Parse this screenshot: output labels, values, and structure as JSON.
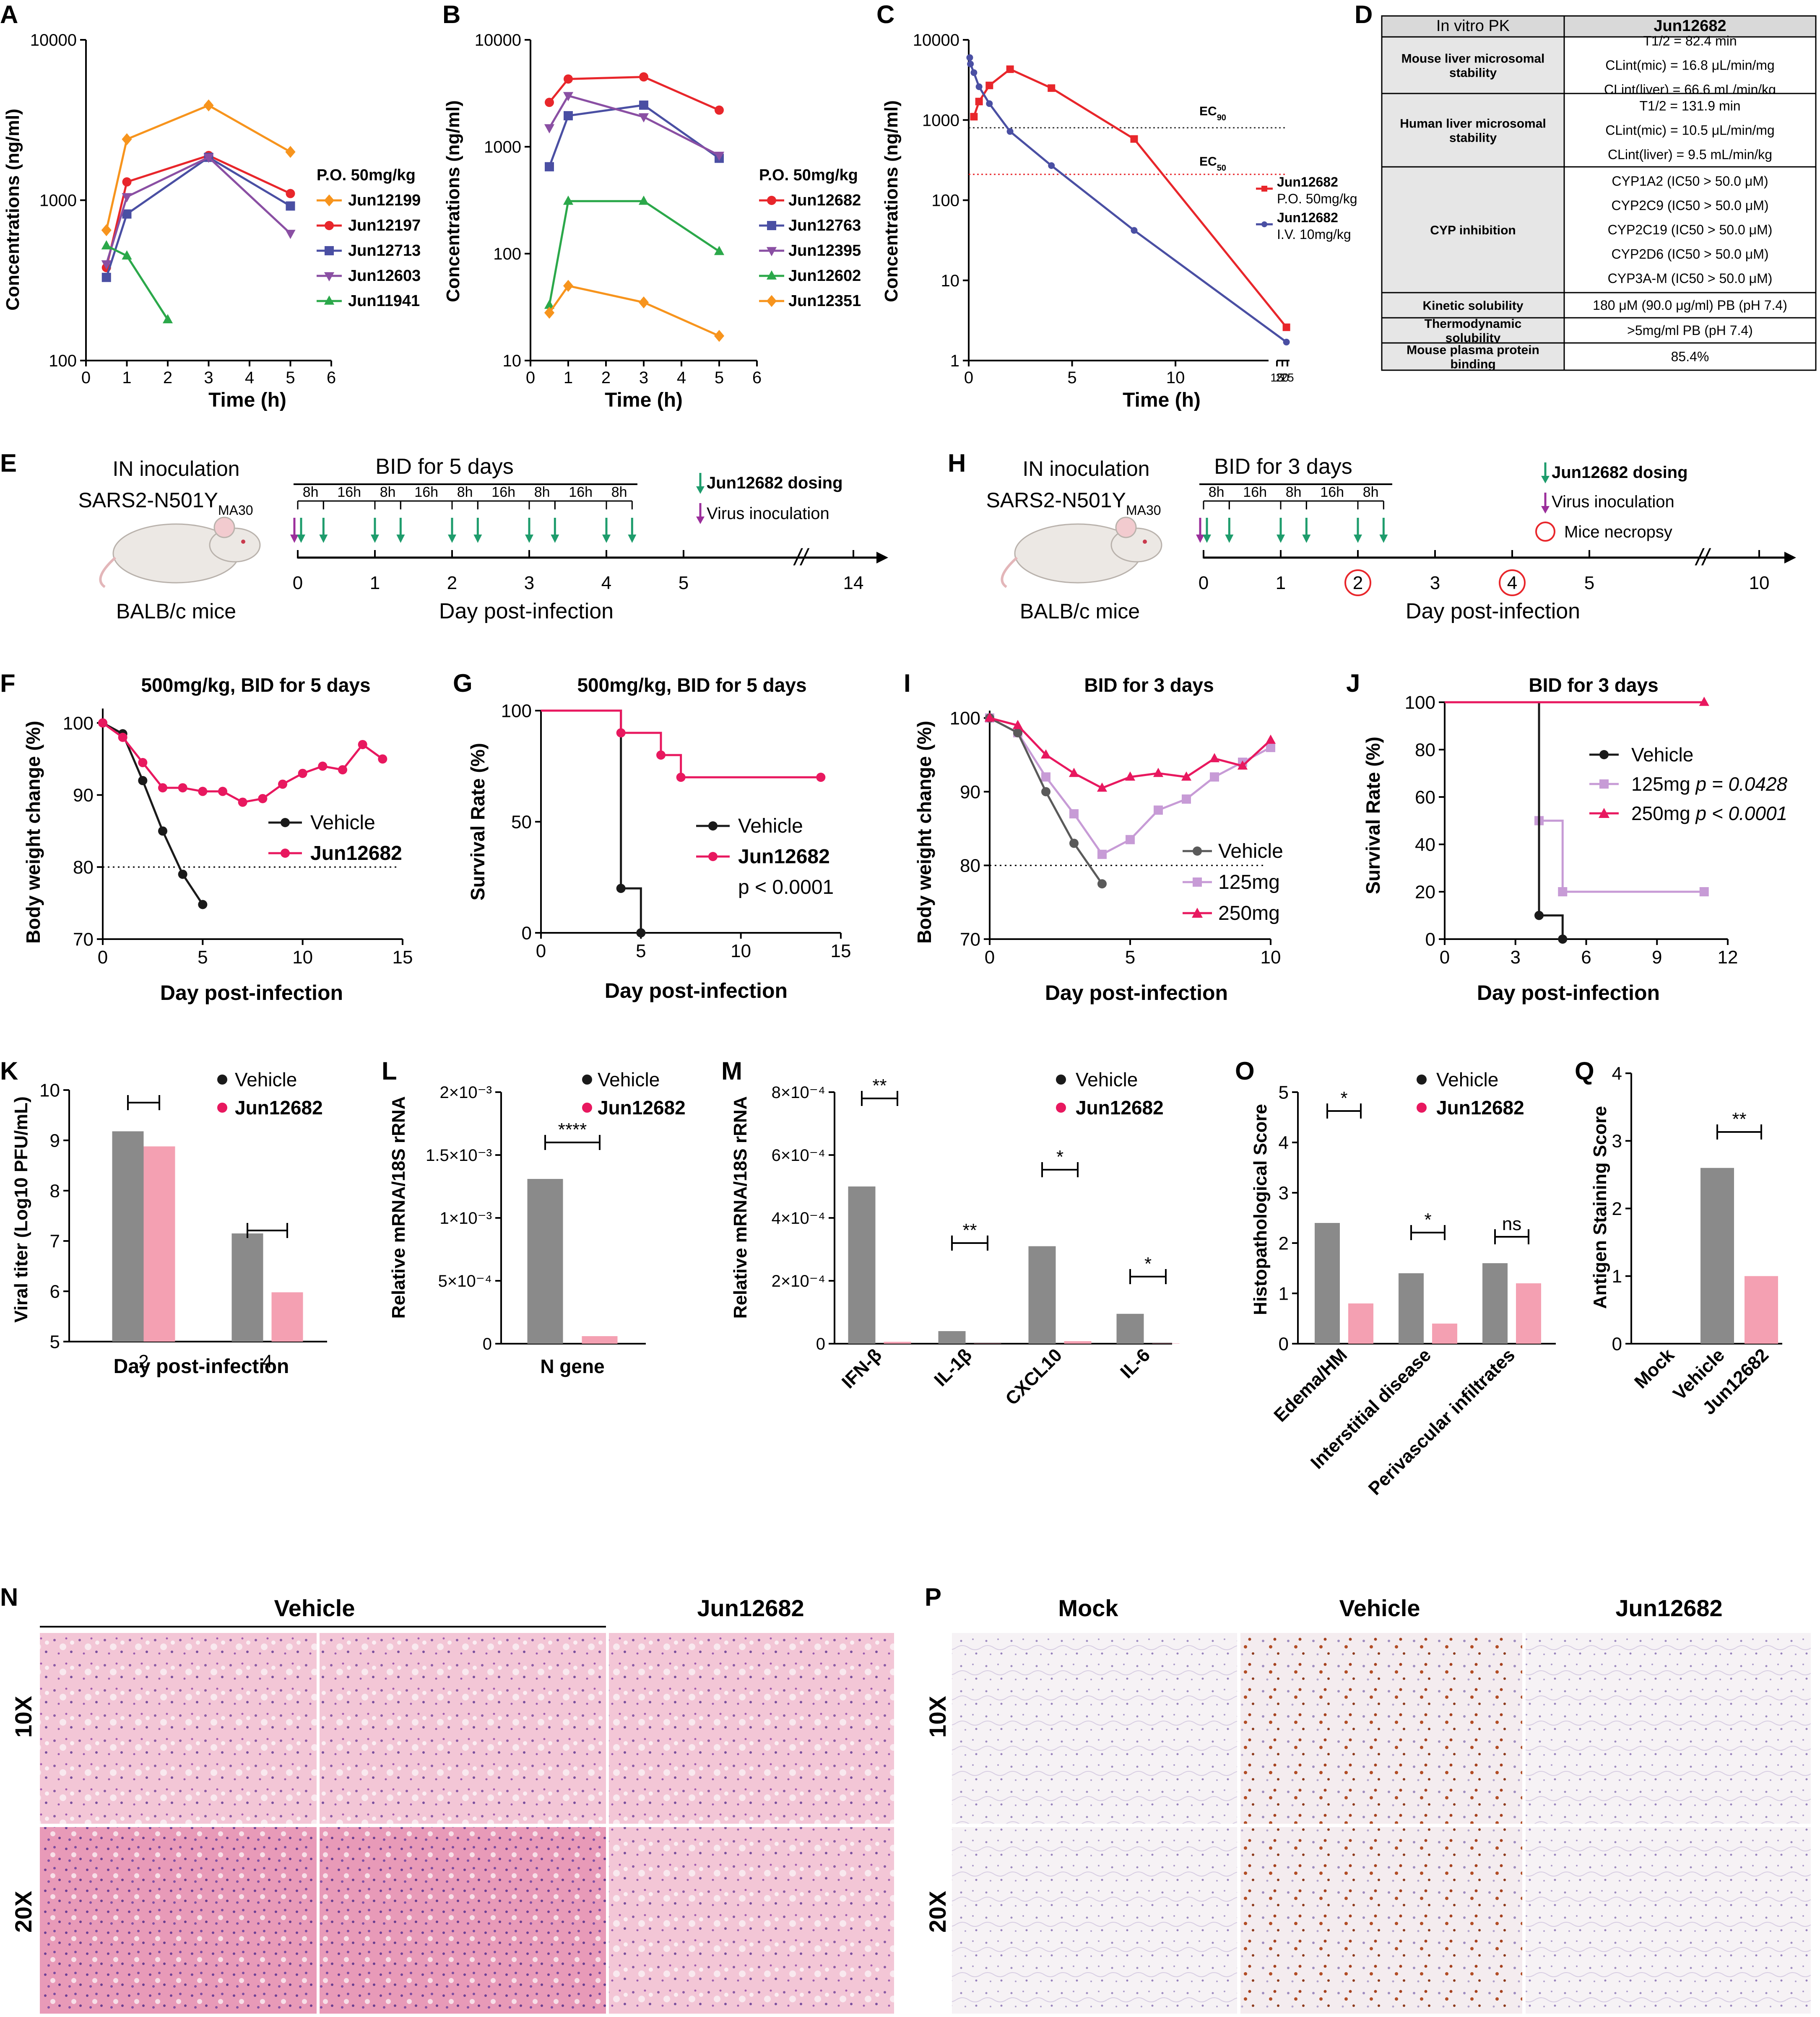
{
  "colors": {
    "vehicle": "#1a1a1a",
    "jun": "#e8185f",
    "jun_bar": "#f4a0b2",
    "veh_bar": "#8a8a8a",
    "lavender": "#c79bd6",
    "orange": "#f7941d",
    "red": "#e8262b",
    "blue": "#4a4fa3",
    "purple": "#8a4fa3",
    "green": "#2ba84a",
    "gray": "#6b6b6b",
    "table_head": "#d9d9d9",
    "table_bold": "#e6e6e6"
  },
  "panels": {
    "A": "A",
    "B": "B",
    "C": "C",
    "D": "D",
    "E": "E",
    "F": "F",
    "G": "G",
    "H": "H",
    "I": "I",
    "J": "J",
    "K": "K",
    "L": "L",
    "M": "M",
    "N": "N",
    "O": "O",
    "P": "P",
    "Q": "Q"
  },
  "panelA": {
    "ylabel": "Concentrations (ng/ml)",
    "xlabel": "Time (h)",
    "legend_title": "P.O. 50mg/kg",
    "yticks": [
      "10000",
      "1000",
      "100"
    ],
    "xticks": [
      "0",
      "1",
      "2",
      "3",
      "4",
      "5",
      "6"
    ]
  },
  "panelB": {
    "ylabel": "Concentrations (ng/ml)",
    "xlabel": "Time (h)",
    "legend_title": "P.O. 50mg/kg",
    "yticks": [
      "10000",
      "1000",
      "100",
      "10"
    ],
    "xticks": [
      "0",
      "1",
      "2",
      "3",
      "4",
      "5",
      "6"
    ]
  },
  "panelC": {
    "ylabel": "Concentrations (ng/ml)",
    "xlabel": "Time (h)",
    "yticks": [
      "10000",
      "1000",
      "100",
      "10",
      "1"
    ],
    "xticks": [
      "0",
      "5",
      "10",
      "15",
      "20",
      "25"
    ],
    "ec90": "EC",
    "ec90_sub": "90",
    "ec50": "EC",
    "ec50_sub": "50",
    "leg1_name": "Jun12682",
    "leg1_sub": "P.O. 50mg/kg",
    "leg2_name": "Jun12682",
    "leg2_sub": "I.V. 10mg/kg"
  },
  "panelD": {
    "header": [
      "In vitro PK",
      "Jun12682"
    ],
    "rows": [
      {
        "label": "Mouse liver microsomal stability",
        "lines": [
          "T1/2 = 82.4 min",
          "CLint(mic) = 16.8 μL/min/mg",
          "CLint(liver) = 66.6 mL/min/kg"
        ]
      },
      {
        "label": "Human liver microsomal stability",
        "lines": [
          "T1/2 = 131.9 min",
          "CLint(mic) = 10.5 μL/min/mg",
          "CLint(liver) = 9.5 mL/min/kg"
        ]
      },
      {
        "label": "CYP inhibition",
        "lines": [
          "CYP1A2 (IC50 > 50.0 μM)",
          "CYP2C9 (IC50 > 50.0 μM)",
          "CYP2C19 (IC50 > 50.0 μM)",
          "CYP2D6 (IC50 > 50.0 μM)",
          "CYP3A-M (IC50 > 50.0 μM)"
        ]
      },
      {
        "label": "Kinetic solubility",
        "lines": [
          "180 μM (90.0 μg/ml) PB (pH 7.4)"
        ]
      },
      {
        "label": "Thermodynamic solubility",
        "lines": [
          ">5mg/ml PB (pH 7.4)"
        ]
      },
      {
        "label": "Mouse plasma protein binding",
        "lines": [
          "85.4%"
        ]
      }
    ]
  },
  "panelE": {
    "line1": "IN inoculation",
    "line2": "SARS2-N501Y",
    "line2_sub": "MA30",
    "mouse": "BALB/c mice",
    "regimen": "BID for 5 days",
    "intervals": [
      "8h",
      "16h",
      "8h",
      "16h",
      "8h",
      "16h",
      "8h",
      "16h",
      "8h"
    ],
    "dosing": "Jun12682 dosing",
    "virus": "Virus inoculation",
    "xlabel": "Day post-infection",
    "xticks": [
      "0",
      "1",
      "2",
      "3",
      "4",
      "5",
      "14"
    ]
  },
  "panelH": {
    "line1": "IN inoculation",
    "line2": "SARS2-N501Y",
    "line2_sub": "MA30",
    "mouse": "BALB/c mice",
    "regimen": "BID for 3 days",
    "intervals": [
      "8h",
      "16h",
      "8h",
      "16h",
      "8h"
    ],
    "dosing": "Jun12682 dosing",
    "virus": "Virus inoculation",
    "necropsy": "Mice necropsy",
    "xlabel": "Day post-infection",
    "xticks": [
      "0",
      "1",
      "2",
      "3",
      "4",
      "5",
      "10"
    ]
  },
  "panelF": {
    "title": "500mg/kg, BID for 5 days",
    "ylabel": "Body weight change (%)",
    "xlabel": "Day post-infection",
    "yticks": [
      "100",
      "90",
      "80",
      "70"
    ],
    "xticks": [
      "0",
      "5",
      "10",
      "15"
    ],
    "legend": [
      "Vehicle",
      "Jun12682"
    ]
  },
  "panelG": {
    "title": "500mg/kg, BID for 5 days",
    "ylabel": "Survival Rate (%)",
    "xlabel": "Day post-infection",
    "yticks": [
      "100",
      "50",
      "0"
    ],
    "xticks": [
      "0",
      "5",
      "10",
      "15"
    ],
    "legend": [
      "Vehicle",
      "Jun12682"
    ],
    "pval": "p < 0.0001"
  },
  "panelI": {
    "title": "BID for 3 days",
    "ylabel": "Body weight change (%)",
    "xlabel": "Day post-infection",
    "yticks": [
      "100",
      "90",
      "80",
      "70"
    ],
    "xticks": [
      "0",
      "5",
      "10"
    ],
    "legend": [
      "Vehicle",
      "125mg",
      "250mg"
    ]
  },
  "panelJ": {
    "title": "BID for 3 days",
    "ylabel": "Survival Rate (%)",
    "xlabel": "Day post-infection",
    "yticks": [
      "100",
      "80",
      "60",
      "40",
      "20",
      "0"
    ],
    "xticks": [
      "0",
      "3",
      "6",
      "9",
      "12"
    ],
    "legend": [
      "Vehicle",
      "125mg",
      "250mg"
    ],
    "p125": "p = 0.0428",
    "p250": "p < 0.0001"
  },
  "panelK": {
    "ylabel": "Viral titer (Log10 PFU/mL)",
    "xlabel": "Day post-infection",
    "yticks": [
      "10",
      "9",
      "8",
      "7",
      "6",
      "5"
    ],
    "xticks": [
      "2",
      "4"
    ],
    "legend": [
      "Vehicle",
      "Jun12682"
    ]
  },
  "panelL": {
    "ylabel": "Relative mRNA/18S rRNA",
    "yticks": [
      "2×10⁻³",
      "1.5×10⁻³",
      "1×10⁻³",
      "5×10⁻⁴",
      "0"
    ],
    "xticks": [
      "N gene"
    ],
    "sig": "****",
    "legend": [
      "Vehicle",
      "Jun12682"
    ]
  },
  "panelM": {
    "ylabel": "Relative mRNA/18S rRNA",
    "yticks": [
      "8×10⁻⁴",
      "6×10⁻⁴",
      "4×10⁻⁴",
      "2×10⁻⁴",
      "0"
    ],
    "xticks": [
      "IFN-β",
      "IL-1β",
      "CXCL10",
      "IL-6"
    ],
    "sig": [
      "**",
      "**",
      "*",
      "*"
    ],
    "legend": [
      "Vehicle",
      "Jun12682"
    ]
  },
  "panelO": {
    "ylabel": "Histopathological Score",
    "yticks": [
      "5",
      "4",
      "3",
      "2",
      "1",
      "0"
    ],
    "xticks": [
      "Edema/HM",
      "Interstitial disease",
      "Perivascular infiltrates"
    ],
    "sig": [
      "*",
      "*",
      "ns"
    ],
    "legend": [
      "Vehicle",
      "Jun12682"
    ]
  },
  "panelQ": {
    "ylabel": "Antigen Staining Score",
    "yticks": [
      "4",
      "3",
      "2",
      "1",
      "0"
    ],
    "xticks": [
      "Mock",
      "Vehicle",
      "Jun12682"
    ],
    "sig": "**"
  },
  "panelN": {
    "group1": "Vehicle",
    "group2": "Jun12682",
    "rows": [
      "10X",
      "20X"
    ]
  },
  "panelP": {
    "cols": [
      "Mock",
      "Vehicle",
      "Jun12682"
    ],
    "rows": [
      "10X",
      "20X"
    ]
  },
  "chart_data": [
    {
      "panel": "A",
      "type": "line",
      "title": "",
      "xlabel": "Time (h)",
      "ylabel": "Concentrations (ng/ml)",
      "yscale": "log",
      "ylim": [
        100,
        10000
      ],
      "xlim": [
        0,
        6
      ],
      "legend_title": "P.O. 50mg/kg",
      "series": [
        {
          "name": "Jun12199",
          "x": [
            0.5,
            1,
            3,
            5
          ],
          "y": [
            650,
            2400,
            3900,
            2000
          ]
        },
        {
          "name": "Jun12197",
          "x": [
            0.5,
            1,
            3,
            5
          ],
          "y": [
            380,
            1300,
            1900,
            1100
          ]
        },
        {
          "name": "Jun12713",
          "x": [
            0.5,
            1,
            3,
            5
          ],
          "y": [
            330,
            820,
            1850,
            920
          ]
        },
        {
          "name": "Jun12603",
          "x": [
            0.5,
            1,
            3,
            5
          ],
          "y": [
            400,
            1050,
            1850,
            620
          ]
        },
        {
          "name": "Jun11941",
          "x": [
            0.5,
            1,
            2
          ],
          "y": [
            520,
            450,
            180
          ]
        }
      ]
    },
    {
      "panel": "B",
      "type": "line",
      "title": "",
      "xlabel": "Time (h)",
      "ylabel": "Concentrations (ng/ml)",
      "yscale": "log",
      "ylim": [
        10,
        10000
      ],
      "xlim": [
        0,
        6
      ],
      "legend_title": "P.O. 50mg/kg",
      "series": [
        {
          "name": "Jun12682",
          "x": [
            0.5,
            1,
            3,
            5
          ],
          "y": [
            2600,
            4300,
            4500,
            2200
          ]
        },
        {
          "name": "Jun12763",
          "x": [
            0.5,
            1,
            3,
            5
          ],
          "y": [
            650,
            1950,
            2450,
            780
          ]
        },
        {
          "name": "Jun12395",
          "x": [
            0.5,
            1,
            3,
            5
          ],
          "y": [
            1500,
            3000,
            1900,
            830
          ]
        },
        {
          "name": "Jun12602",
          "x": [
            0.5,
            1,
            3,
            5
          ],
          "y": [
            33,
            310,
            310,
            105
          ]
        },
        {
          "name": "Jun12351",
          "x": [
            0.5,
            1,
            3,
            5
          ],
          "y": [
            28,
            50,
            35,
            17
          ]
        }
      ]
    },
    {
      "panel": "C",
      "type": "line",
      "title": "",
      "xlabel": "Time (h)",
      "ylabel": "Concentrations (ng/ml)",
      "yscale": "log",
      "ylim": [
        1,
        10000
      ],
      "xlim": [
        0,
        25
      ],
      "series": [
        {
          "name": "P.O. 50mg/kg",
          "x": [
            0.25,
            0.5,
            1,
            2,
            4,
            8,
            24
          ],
          "y": [
            1100,
            1700,
            2700,
            4300,
            2500,
            580,
            2.6
          ]
        },
        {
          "name": "I.V. 10mg/kg",
          "x": [
            0.05,
            0.083,
            0.25,
            0.5,
            1,
            2,
            4,
            8,
            24
          ],
          "y": [
            6000,
            5000,
            3900,
            2600,
            1600,
            720,
            270,
            42,
            1.7
          ]
        }
      ],
      "ec90": 800,
      "ec50": 210
    },
    {
      "panel": "F",
      "type": "line",
      "title": "500mg/kg, BID for 5 days",
      "xlabel": "Day post-infection",
      "ylabel": "Body weight change (%)",
      "ylim": [
        70,
        105
      ],
      "xlim": [
        0,
        15
      ],
      "series": [
        {
          "name": "Vehicle",
          "x": [
            0,
            1,
            2,
            3,
            4,
            5
          ],
          "y": [
            100,
            98.5,
            92,
            85,
            79,
            74.8
          ]
        },
        {
          "name": "Jun12682",
          "x": [
            0,
            1,
            2,
            3,
            4,
            5,
            6,
            7,
            8,
            9,
            10,
            11,
            12,
            13,
            14
          ],
          "y": [
            100,
            98,
            94.5,
            91,
            91,
            90.5,
            90.5,
            89,
            89.5,
            91.5,
            93,
            94,
            93.5,
            97,
            95
          ]
        }
      ],
      "baseline": 80
    },
    {
      "panel": "G",
      "type": "line",
      "title": "500mg/kg, BID for 5 days",
      "xlabel": "Day post-infection",
      "ylabel": "Survival Rate (%)",
      "ylim": [
        0,
        100
      ],
      "xlim": [
        0,
        15
      ],
      "series": [
        {
          "name": "Vehicle",
          "x": [
            0,
            4,
            5
          ],
          "y": [
            100,
            20,
            0
          ]
        },
        {
          "name": "Jun12682",
          "x": [
            0,
            4,
            6,
            7,
            14
          ],
          "y": [
            100,
            90,
            80,
            70,
            70
          ]
        }
      ],
      "annotation": "p < 0.0001"
    },
    {
      "panel": "I",
      "type": "line",
      "title": "BID for 3 days",
      "xlabel": "Day post-infection",
      "ylabel": "Body weight change (%)",
      "ylim": [
        70,
        102
      ],
      "xlim": [
        0,
        10
      ],
      "series": [
        {
          "name": "Vehicle",
          "x": [
            0,
            1,
            2,
            3,
            4
          ],
          "y": [
            100,
            98,
            90,
            83,
            77.5
          ]
        },
        {
          "name": "125mg",
          "x": [
            0,
            1,
            2,
            3,
            4,
            5,
            6,
            7,
            8,
            9,
            10
          ],
          "y": [
            100,
            98,
            92,
            87,
            81.5,
            83.5,
            87.5,
            89,
            92,
            94,
            96
          ]
        },
        {
          "name": "250mg",
          "x": [
            0,
            1,
            2,
            3,
            4,
            5,
            6,
            7,
            8,
            9,
            10
          ],
          "y": [
            100,
            99,
            95,
            92.5,
            90.5,
            92,
            92.5,
            92,
            94.5,
            93.5,
            97
          ]
        }
      ],
      "baseline": 80
    },
    {
      "panel": "J",
      "type": "line",
      "title": "BID for 3 days",
      "xlabel": "Day post-infection",
      "ylabel": "Survival Rate (%)",
      "ylim": [
        0,
        100
      ],
      "xlim": [
        0,
        12
      ],
      "series": [
        {
          "name": "Vehicle",
          "x": [
            0,
            4,
            5
          ],
          "y": [
            100,
            10,
            0
          ]
        },
        {
          "name": "125mg",
          "x": [
            0,
            4,
            5,
            11
          ],
          "y": [
            100,
            50,
            20,
            20
          ]
        },
        {
          "name": "250mg",
          "x": [
            0,
            11
          ],
          "y": [
            100,
            100
          ]
        }
      ],
      "annotations": [
        "p = 0.0428",
        "p < 0.0001"
      ]
    },
    {
      "panel": "K",
      "type": "bar",
      "title": "",
      "xlabel": "Day post-infection",
      "ylabel": "Viral titer (Log10 PFU/mL)",
      "ylim": [
        5,
        10
      ],
      "categories": [
        "2",
        "4"
      ],
      "series": [
        {
          "name": "Vehicle",
          "values": [
            9.18,
            7.15
          ]
        },
        {
          "name": "Jun12682",
          "values": [
            8.88,
            5.98
          ]
        }
      ]
    },
    {
      "panel": "L",
      "type": "bar",
      "title": "",
      "xlabel": "",
      "ylabel": "Relative mRNA/18S rRNA",
      "ylim": [
        0,
        0.002
      ],
      "categories": [
        "N gene"
      ],
      "series": [
        {
          "name": "Vehicle",
          "values": [
            0.00131
          ]
        },
        {
          "name": "Jun12682",
          "values": [
            6e-05
          ]
        }
      ]
    },
    {
      "panel": "M",
      "type": "bar",
      "title": "",
      "xlabel": "",
      "ylabel": "Relative mRNA/18S rRNA",
      "ylim": [
        0,
        0.0008
      ],
      "categories": [
        "IFN-β",
        "IL-1β",
        "CXCL10",
        "IL-6"
      ],
      "series": [
        {
          "name": "Vehicle",
          "values": [
            0.0005,
            4e-05,
            0.00031,
            9.5e-05
          ]
        },
        {
          "name": "Jun12682",
          "values": [
            6e-06,
            1e-06,
            8e-06,
            1e-06
          ]
        }
      ]
    },
    {
      "panel": "O",
      "type": "bar",
      "title": "",
      "xlabel": "",
      "ylabel": "Histopathological Score",
      "ylim": [
        0,
        5
      ],
      "categories": [
        "Edema/HM",
        "Interstitial disease",
        "Perivascular infiltrates"
      ],
      "series": [
        {
          "name": "Vehicle",
          "values": [
            2.4,
            1.4,
            1.6
          ]
        },
        {
          "name": "Jun12682",
          "values": [
            0.8,
            0.4,
            1.2
          ]
        }
      ]
    },
    {
      "panel": "Q",
      "type": "bar",
      "title": "",
      "xlabel": "",
      "ylabel": "Antigen Staining Score",
      "ylim": [
        0,
        4
      ],
      "categories": [
        "Mock",
        "Vehicle",
        "Jun12682"
      ],
      "series": [
        {
          "name": "Score",
          "values": [
            0,
            2.6,
            1.0
          ]
        }
      ]
    }
  ]
}
